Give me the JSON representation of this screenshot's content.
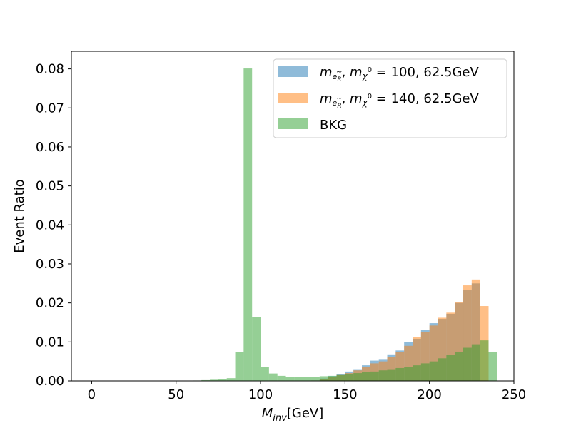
{
  "chart_data": {
    "type": "bar",
    "title": "",
    "xlabel": "M_inv[GeV]",
    "ylabel": "Event Ratio",
    "xlim": [
      -12,
      250
    ],
    "ylim": [
      0,
      0.0845
    ],
    "x_ticks": [
      0,
      50,
      100,
      150,
      200,
      250
    ],
    "y_ticks": [
      0.0,
      0.01,
      0.02,
      0.03,
      0.04,
      0.05,
      0.06,
      0.07,
      0.08
    ],
    "y_tick_labels": [
      "0.00",
      "0.01",
      "0.02",
      "0.03",
      "0.04",
      "0.05",
      "0.06",
      "0.07",
      "0.08"
    ],
    "bin_start": 0,
    "bin_width": 5,
    "grid": false,
    "legend_position": "top-right",
    "series": [
      {
        "name": "m_eR, m_chi0 = 100, 62.5GeV",
        "color": "#1f77b4",
        "values": [
          0,
          0,
          0,
          0,
          0,
          0,
          0,
          0,
          0,
          0,
          0,
          0,
          0,
          0,
          0,
          0,
          0,
          0,
          0,
          0,
          0,
          0,
          0,
          0,
          0,
          0,
          0.0001,
          0.0006,
          0.0012,
          0.0018,
          0.0024,
          0.003,
          0.004,
          0.0052,
          0.0056,
          0.0068,
          0.0078,
          0.0099,
          0.0108,
          0.0131,
          0.0148,
          0.0159,
          0.0172,
          0.02,
          0.0233,
          0.025
        ]
      },
      {
        "name": "m_eR, m_chi0 = 140, 62.5GeV",
        "color": "#ff7f0e",
        "values": [
          0,
          0,
          0,
          0,
          0,
          0,
          0,
          0,
          0,
          0,
          0,
          0,
          0,
          0,
          0,
          0,
          0,
          0,
          0,
          0,
          0,
          0,
          0,
          0,
          0,
          0,
          0.0001,
          0.0005,
          0.001,
          0.0015,
          0.002,
          0.0027,
          0.0035,
          0.0045,
          0.005,
          0.0062,
          0.0075,
          0.009,
          0.0112,
          0.0125,
          0.0142,
          0.0162,
          0.0175,
          0.0202,
          0.0245,
          0.026,
          0.0192
        ]
      },
      {
        "name": "BKG",
        "color": "#2ca02c",
        "values": [
          0,
          0,
          0,
          0,
          0,
          0,
          0,
          0,
          0,
          0,
          0,
          0,
          0.0001,
          0.0002,
          0.0003,
          0.0004,
          0.0007,
          0.0074,
          0.0801,
          0.0163,
          0.0035,
          0.0019,
          0.0013,
          0.001,
          0.001,
          0.001,
          0.001,
          0.0012,
          0.0013,
          0.0015,
          0.0018,
          0.002,
          0.0022,
          0.0024,
          0.0027,
          0.003,
          0.0033,
          0.0036,
          0.004,
          0.0045,
          0.005,
          0.0058,
          0.0066,
          0.0075,
          0.0085,
          0.0094,
          0.0104,
          0.0075
        ]
      }
    ]
  }
}
